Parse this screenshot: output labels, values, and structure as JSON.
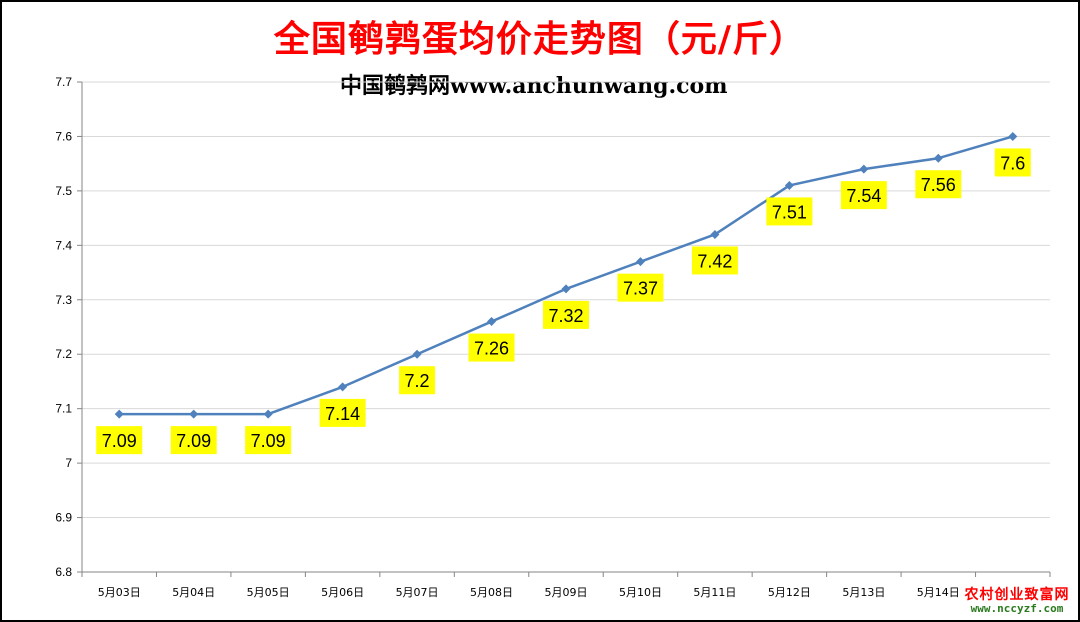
{
  "colors": {
    "title": "#ff0000",
    "line": "#4f81bd",
    "marker": "#4f81bd",
    "label_bg": "#ffff00",
    "grid": "#d9d9d9",
    "watermark_top": "#ff0000",
    "watermark_bottom": "#2a7a1e"
  },
  "watermark": {
    "line1": "农村创业致富网",
    "line2": "www.nccyzf.com"
  },
  "chart_data": {
    "type": "line",
    "title": "全国鹌鹑蛋均价走势图（元/斤）",
    "subtitle": "中国鹌鹑网www.anchunwang.com",
    "xlabel": "",
    "ylabel": "",
    "categories": [
      "5月03日",
      "5月04日",
      "5月05日",
      "5月06日",
      "5月07日",
      "5月08日",
      "5月09日",
      "5月10日",
      "5月11日",
      "5月12日",
      "5月13日",
      "5月14日",
      "5月15日"
    ],
    "series": [
      {
        "values": [
          7.09,
          7.09,
          7.09,
          7.14,
          7.2,
          7.26,
          7.32,
          7.37,
          7.42,
          7.51,
          7.54,
          7.56,
          7.6
        ],
        "labels": [
          "7.09",
          "7.09",
          "7.09",
          "7.14",
          "7.2",
          "7.26",
          "7.32",
          "7.37",
          "7.42",
          "7.51",
          "7.54",
          "7.56",
          "7.6"
        ]
      }
    ],
    "y_ticks": [
      "6.8",
      "6.9",
      "7",
      "7.1",
      "7.2",
      "7.3",
      "7.4",
      "7.5",
      "7.6",
      "7.7"
    ],
    "ylim": [
      6.8,
      7.7
    ],
    "grid": true,
    "legend": "none",
    "marker": "diamond"
  }
}
